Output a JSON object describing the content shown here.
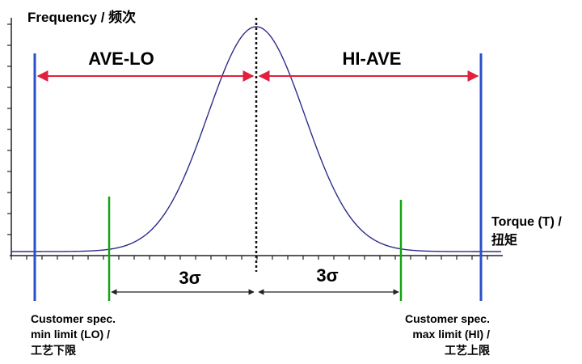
{
  "axis": {
    "y_label": "Frequency / 频次",
    "x_label_line1": "Torque (T) /",
    "x_label_line2": "扭矩"
  },
  "labels": {
    "ave_lo": "AVE-LO",
    "hi_ave": "HI-AVE",
    "sigma_left": "3σ",
    "sigma_right": "3σ"
  },
  "lo_limit": {
    "line1": "Customer spec.",
    "line2": "min limit (LO) /",
    "line3": "工艺下限"
  },
  "hi_limit": {
    "line1": "Customer spec.",
    "line2": "max limit (HI) /",
    "line3": "工艺上限"
  },
  "colors": {
    "spec_limit": "#2a4fc9",
    "process_limit": "#14a314",
    "span_arrow": "#e0203c",
    "curve": "#2d2d8a",
    "axis": "#222222"
  }
}
